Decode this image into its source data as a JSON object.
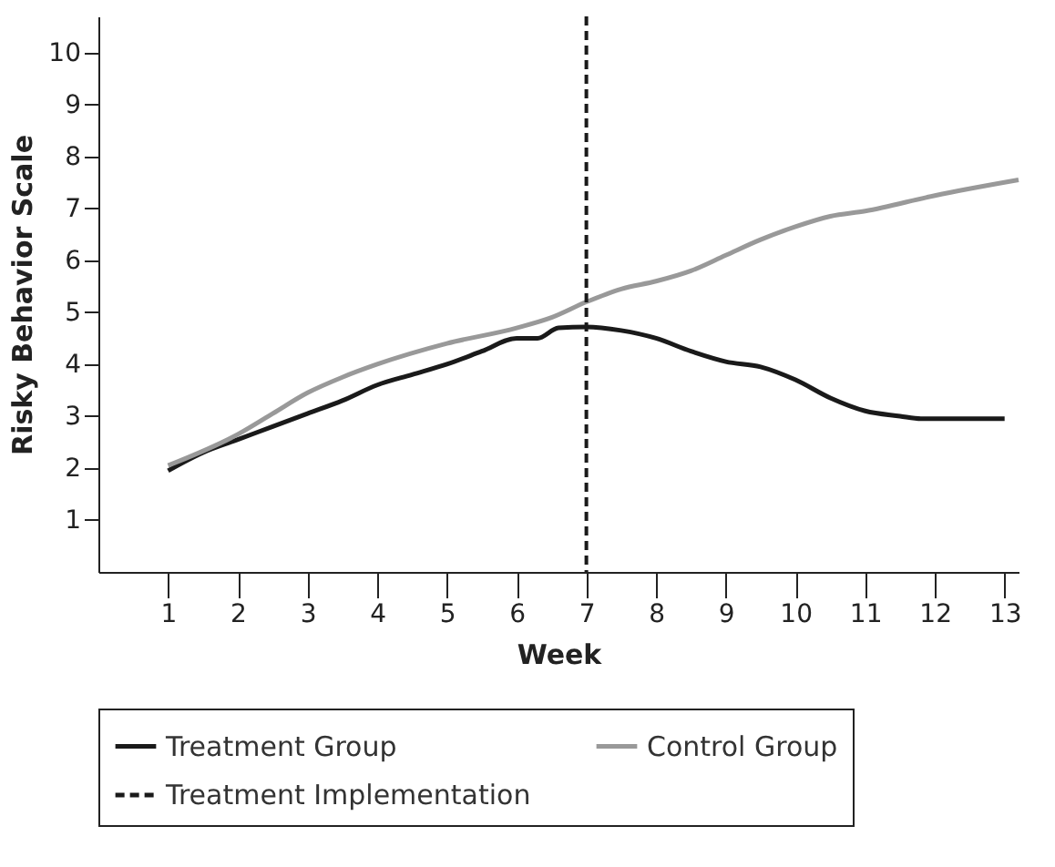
{
  "chart_data": {
    "type": "line",
    "xlabel": "Week",
    "ylabel": "Risky Behavior Scale",
    "xlim": [
      0,
      13.2
    ],
    "ylim": [
      0,
      10.7
    ],
    "xticks": [
      1,
      2,
      3,
      4,
      5,
      6,
      7,
      8,
      9,
      10,
      11,
      12,
      13
    ],
    "yticks": [
      1,
      2,
      3,
      4,
      5,
      6,
      7,
      8,
      9,
      10
    ],
    "grid": false,
    "legend": "bottom",
    "line_style": "solid",
    "series": [
      {
        "name": "Treatment Group",
        "color": "#1a1a1a",
        "x": [
          1,
          1.5,
          2,
          2.5,
          3,
          3.5,
          4,
          4.5,
          5,
          5.5,
          6,
          6.3,
          6.6,
          7,
          7.5,
          8,
          8.5,
          9,
          9.5,
          10,
          10.5,
          11,
          11.5,
          11.8,
          13
        ],
        "values": [
          1.95,
          2.3,
          2.55,
          2.8,
          3.05,
          3.3,
          3.6,
          3.8,
          4.0,
          4.25,
          4.5,
          4.5,
          4.7,
          4.72,
          4.65,
          4.5,
          4.25,
          4.05,
          3.95,
          3.7,
          3.35,
          3.1,
          3.0,
          2.95,
          2.95
        ]
      },
      {
        "name": "Control Group",
        "color": "#999999",
        "x": [
          1,
          2,
          2.5,
          3,
          3.5,
          4,
          5,
          6,
          6.5,
          7,
          7.5,
          8,
          8.5,
          9,
          9.5,
          10,
          10.5,
          11,
          12,
          13.2
        ],
        "values": [
          2.05,
          2.65,
          3.05,
          3.45,
          3.75,
          4.0,
          4.4,
          4.7,
          4.9,
          5.2,
          5.45,
          5.6,
          5.8,
          6.1,
          6.4,
          6.65,
          6.85,
          6.95,
          7.25,
          7.55
        ]
      }
    ],
    "ref_lines": [
      {
        "axis": "x",
        "value": 7,
        "label": "Treatment Implementation",
        "color": "#1a1a1a",
        "line_style": "dashed"
      }
    ]
  }
}
